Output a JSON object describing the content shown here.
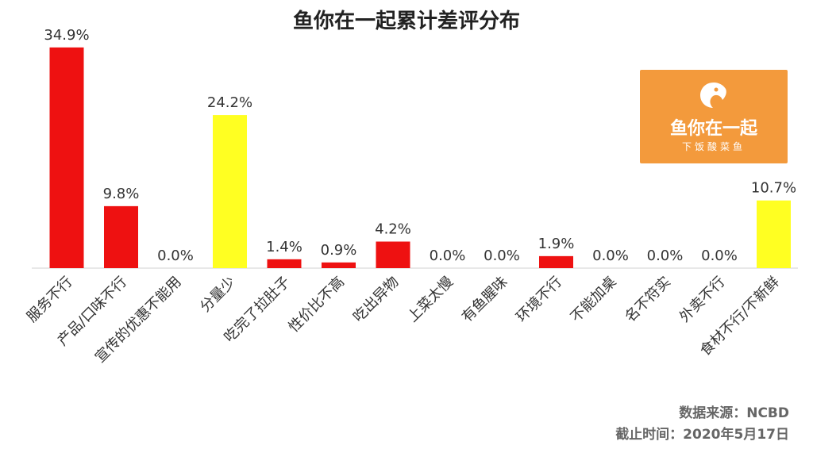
{
  "chart_data": {
    "type": "bar",
    "title": "鱼你在一起累计差评分布",
    "categories": [
      "服务不行",
      "产品/口味不行",
      "宣传的优惠不能用",
      "分量少",
      "吃完了拉肚子",
      "性价比不高",
      "吃出异物",
      "上菜太慢",
      "有鱼腥味",
      "环境不行",
      "不能加桌",
      "名不符实",
      "外卖不行",
      "食材不行/不新鲜"
    ],
    "values": [
      34.9,
      9.8,
      0.0,
      24.2,
      1.4,
      0.9,
      4.2,
      0.0,
      0.0,
      1.9,
      0.0,
      0.0,
      0.0,
      10.7
    ],
    "value_labels": [
      "34.9%",
      "9.8%",
      "0.0%",
      "24.2%",
      "1.4%",
      "0.9%",
      "4.2%",
      "0.0%",
      "0.0%",
      "1.9%",
      "0.0%",
      "0.0%",
      "0.0%",
      "10.7%"
    ],
    "colors": [
      "#ee1111",
      "#ee1111",
      "#ee1111",
      "#ffff22",
      "#ee1111",
      "#ee1111",
      "#ee1111",
      "#ee1111",
      "#ee1111",
      "#ee1111",
      "#ee1111",
      "#ee1111",
      "#ee1111",
      "#ffff22"
    ],
    "ylim": [
      0,
      36
    ],
    "grid": false
  },
  "logo": {
    "name": "鱼你在一起",
    "slogan": "下饭酸菜鱼",
    "color": "#f39a3c"
  },
  "footer": {
    "source": "数据来源：NCBD",
    "date": "截止时间：2020年5月17日"
  }
}
